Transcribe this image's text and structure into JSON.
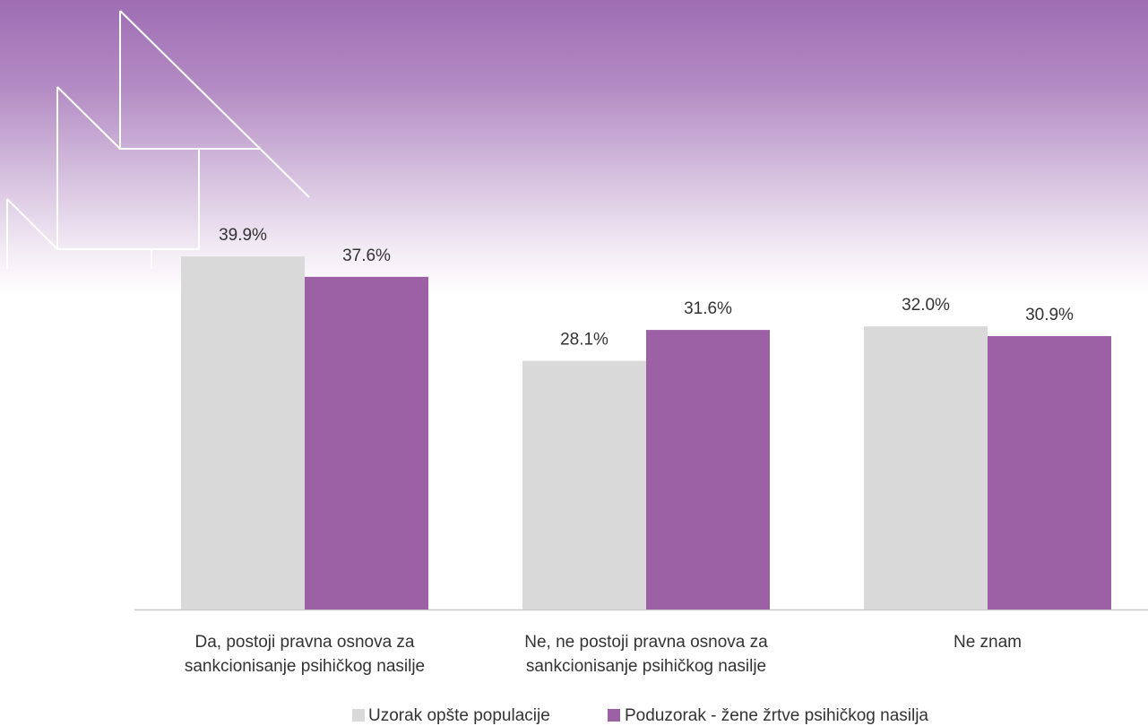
{
  "colors": {
    "series_general": "#d9d9d9",
    "series_victims": "#9c61a4",
    "axis": "#c8c8c8",
    "decor_lines": "#ffffff"
  },
  "chart_data": {
    "type": "bar",
    "categories": [
      [
        "Da, postoji pravna osnova za",
        "sankcionisanje psihičkog nasilje"
      ],
      [
        "Ne, ne postoji pravna osnova za",
        "sankcionisanje psihičkog nasilje"
      ],
      [
        "Ne znam"
      ]
    ],
    "series": [
      {
        "name": "Uzorak opšte populacije",
        "values": [
          39.9,
          28.1,
          32.0
        ],
        "labels": [
          "39.9%",
          "28.1%",
          "32.0%"
        ]
      },
      {
        "name": "Poduzorak - žene žrtve psihičkog nasilja",
        "values": [
          37.6,
          31.6,
          30.9
        ],
        "labels": [
          "37.6%",
          "31.6%",
          "30.9%"
        ]
      }
    ],
    "ylim": [
      0,
      45
    ],
    "grid": false,
    "legend_position": "bottom-center"
  }
}
